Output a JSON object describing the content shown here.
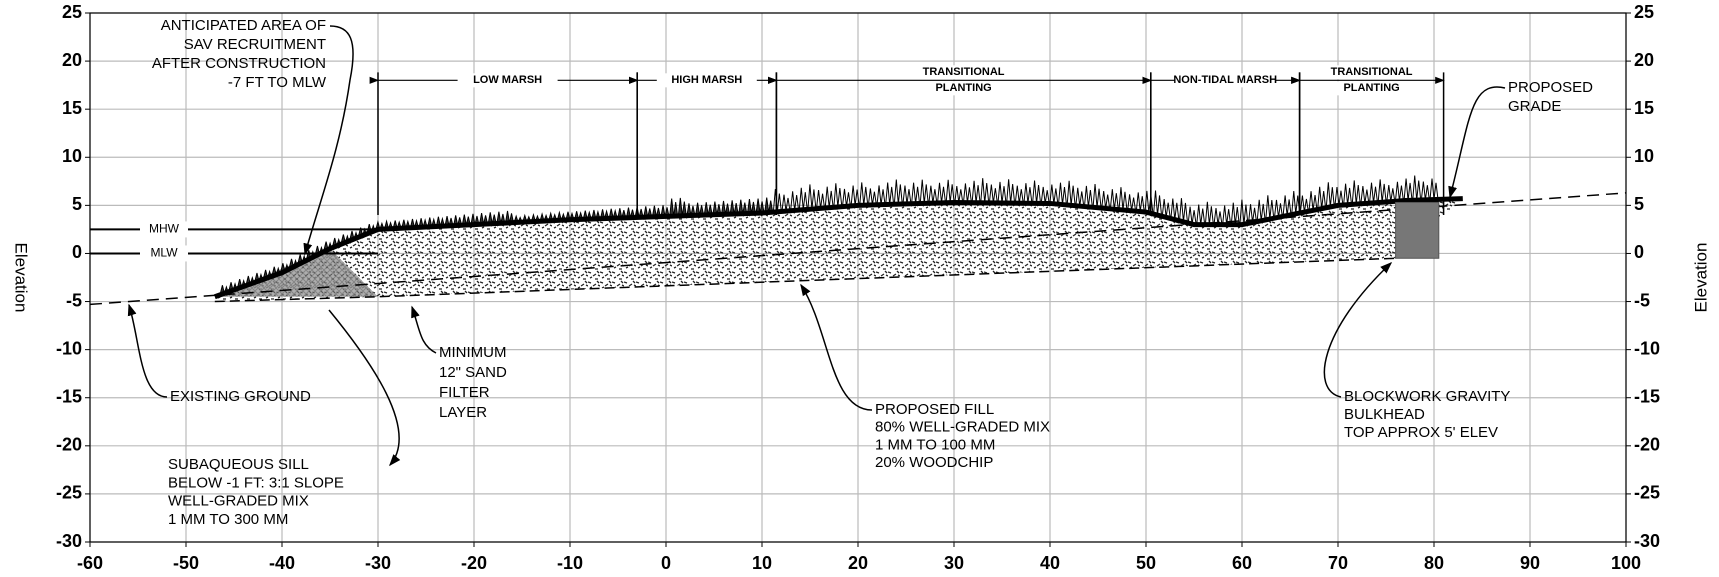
{
  "axes": {
    "xlim": [
      -60,
      100
    ],
    "ylim": [
      -30,
      25
    ],
    "xticks": [
      -60,
      -50,
      -40,
      -30,
      -20,
      -10,
      0,
      10,
      20,
      30,
      40,
      50,
      60,
      70,
      80,
      90,
      100
    ],
    "yticks": [
      -30,
      -25,
      -20,
      -15,
      -10,
      -5,
      0,
      5,
      10,
      15,
      20,
      25
    ],
    "y_label": "Elevation",
    "y2_label": "Elevation",
    "grid": true
  },
  "water_levels": [
    {
      "name": "MHW",
      "elevation": 2.5
    },
    {
      "name": "MLW",
      "elevation": 0
    }
  ],
  "zones": [
    {
      "lines": [
        "LOW MARSH"
      ],
      "start": -30,
      "end": -3
    },
    {
      "lines": [
        "HIGH MARSH"
      ],
      "start": -3,
      "end": 11.5
    },
    {
      "lines": [
        "TRANSITIONAL",
        "PLANTING"
      ],
      "start": 11.5,
      "end": 50.5
    },
    {
      "lines": [
        "NON-TIDAL MARSH"
      ],
      "start": 50.5,
      "end": 66
    },
    {
      "lines": [
        "TRANSITIONAL",
        "PLANTING"
      ],
      "start": 66,
      "end": 81
    }
  ],
  "profiles": {
    "existing_ground": {
      "x": [
        -60,
        100
      ],
      "y": [
        -5.3,
        6.3
      ]
    },
    "proposed_grade": {
      "x": [
        -47,
        -40,
        -35,
        -30,
        -10,
        10,
        20,
        30,
        40,
        50,
        55,
        60,
        65,
        70,
        77,
        83
      ],
      "y": [
        -4.5,
        -2,
        0.5,
        2.5,
        3.5,
        4.2,
        5,
        5.3,
        5.2,
        4.3,
        3,
        3,
        4,
        5,
        5.5,
        5.7
      ]
    },
    "fill_bottom": {
      "x": [
        -47,
        -30,
        76
      ],
      "y": [
        -5,
        -4.5,
        -0.5
      ]
    }
  },
  "bulkhead": {
    "x": [
      76,
      80.5
    ],
    "y": [
      -0.5,
      5.3
    ]
  },
  "annotations": [
    {
      "lines": [
        "ANTICIPATED AREA OF",
        "SAV RECRUITMENT",
        "AFTER CONSTRUCTION",
        "-7 FT TO MLW"
      ]
    },
    {
      "lines": [
        "PROPOSED",
        "GRADE"
      ]
    },
    {
      "lines": [
        "MINIMUM",
        "12\" SAND",
        "FILTER",
        "LAYER"
      ]
    },
    {
      "lines": [
        "EXISTING GROUND"
      ]
    },
    {
      "lines": [
        "SUBAQUEOUS SILL",
        "BELOW -1 FT: 3:1 SLOPE",
        "WELL-GRADED MIX",
        "1 MM TO 300 MM"
      ]
    },
    {
      "lines": [
        "PROPOSED FILL",
        "80% WELL-GRADED MIX",
        "1 MM TO 100 MM",
        "20% WOODCHIP"
      ]
    },
    {
      "lines": [
        "BLOCKWORK GRAVITY",
        "BULKHEAD",
        "TOP APPROX 5' ELEV"
      ]
    }
  ]
}
